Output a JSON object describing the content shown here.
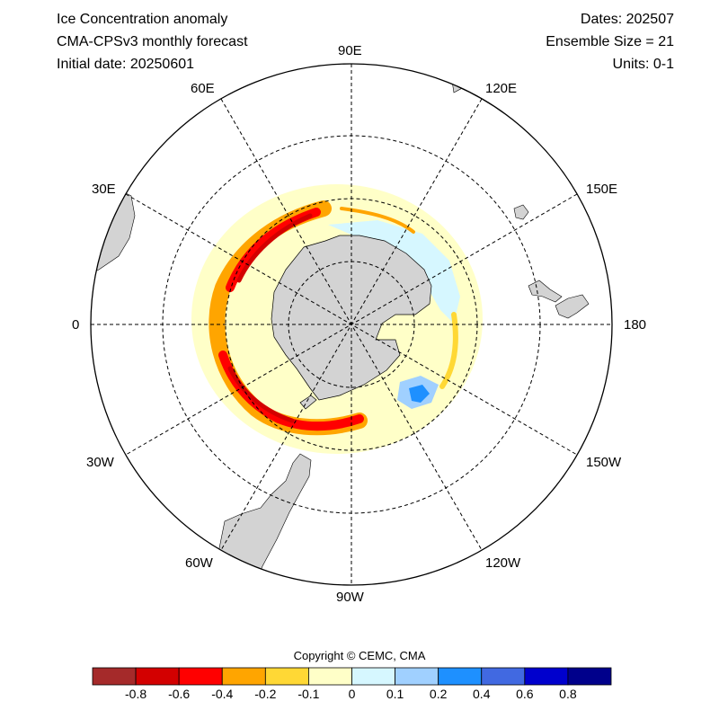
{
  "header": {
    "title": "Ice Concentration anomaly",
    "model": "CMA-CPSv3 monthly forecast",
    "initial_date": "Initial date: 20250601",
    "dates": "Dates: 202507",
    "ensemble": "Ensemble Size = 21",
    "units": "Units: 0-1"
  },
  "map": {
    "projection": "south-polar-stereographic",
    "longitude_labels": [
      "90E",
      "120E",
      "150E",
      "180",
      "150W",
      "120W",
      "90W",
      "60W",
      "30W",
      "0",
      "30E",
      "60E"
    ],
    "land_color": "#d3d3d3",
    "grid": "dashed"
  },
  "footer": {
    "copyright": "Copyright © CEMC, CMA"
  },
  "colorbar": {
    "colors": [
      "#a52a2a",
      "#d30000",
      "#ff0000",
      "#ffa500",
      "#ffd835",
      "#ffffc8",
      "#d6f7ff",
      "#a0d0ff",
      "#1e90ff",
      "#4169e1",
      "#0000cd",
      "#00008b"
    ],
    "tick_labels": [
      "-0.8",
      "-0.6",
      "-0.4",
      "-0.2",
      "-0.1",
      "0",
      "0.1",
      "0.2",
      "0.4",
      "0.6",
      "0.8"
    ]
  }
}
